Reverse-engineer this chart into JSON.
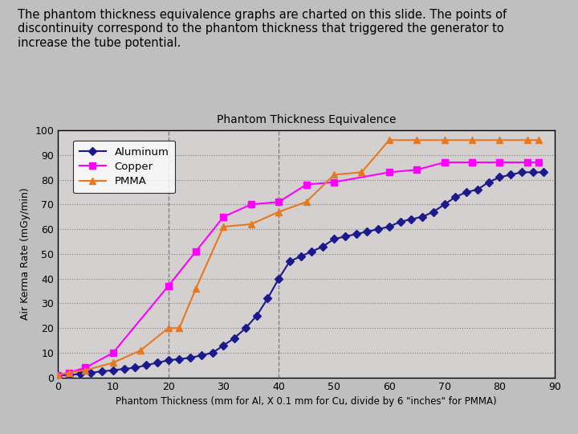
{
  "title": "Phantom Thickness Equivalence",
  "xlabel": "Phantom Thickness (mm for Al, X 0.1 mm for Cu, divide by 6 \"inches\" for PMMA)",
  "ylabel": "Air Kerma Rate (mGy/min)",
  "xlim": [
    0,
    90
  ],
  "ylim": [
    0,
    100
  ],
  "xticks": [
    0,
    10,
    20,
    30,
    40,
    50,
    60,
    70,
    80,
    90
  ],
  "yticks": [
    0,
    10,
    20,
    30,
    40,
    50,
    60,
    70,
    80,
    90,
    100
  ],
  "background_color": "#c0bfbf",
  "plot_bg_color": "#d4d0d0",
  "header_text": "The phantom thickness equivalence graphs are charted on this slide. The points of\ndiscontinuity correspond to the phantom thickness that triggered the generator to\nincrease the tube potential.",
  "vlines": [
    20,
    40
  ],
  "aluminum": {
    "x": [
      0,
      2,
      4,
      6,
      8,
      10,
      12,
      14,
      16,
      18,
      20,
      22,
      24,
      26,
      28,
      30,
      32,
      34,
      36,
      38,
      40,
      42,
      44,
      46,
      48,
      50,
      52,
      54,
      56,
      58,
      60,
      62,
      64,
      66,
      68,
      70,
      72,
      74,
      76,
      78,
      80,
      82,
      84,
      86,
      88
    ],
    "y": [
      1,
      1,
      1.5,
      2,
      2.5,
      3,
      3.5,
      4,
      5,
      6,
      7,
      7.5,
      8,
      9,
      10,
      13,
      16,
      20,
      25,
      32,
      40,
      47,
      49,
      51,
      53,
      56,
      57,
      58,
      59,
      60,
      61,
      63,
      64,
      65,
      67,
      70,
      73,
      75,
      76,
      79,
      81,
      82,
      83,
      83,
      83
    ],
    "color": "#1a1a8c",
    "marker": "D",
    "markersize": 5,
    "label": "Aluminum"
  },
  "copper": {
    "x": [
      0,
      2,
      5,
      10,
      20,
      25,
      30,
      35,
      40,
      45,
      50,
      60,
      65,
      70,
      75,
      80,
      85,
      87
    ],
    "y": [
      1,
      2,
      4,
      10,
      37,
      51,
      65,
      70,
      71,
      78,
      79,
      83,
      84,
      87,
      87,
      87,
      87,
      87
    ],
    "color": "#ff00ff",
    "marker": "s",
    "markersize": 6,
    "label": "Copper"
  },
  "pmma": {
    "x": [
      0,
      2,
      5,
      10,
      15,
      20,
      22,
      25,
      30,
      35,
      40,
      45,
      50,
      55,
      60,
      65,
      70,
      75,
      80,
      85,
      87
    ],
    "y": [
      1,
      2,
      3,
      6,
      11,
      20,
      20,
      36,
      61,
      62,
      67,
      71,
      82,
      83,
      96,
      96,
      96,
      96,
      96,
      96,
      96
    ],
    "color": "#e87820",
    "marker": "^",
    "markersize": 6,
    "label": "PMMA"
  }
}
